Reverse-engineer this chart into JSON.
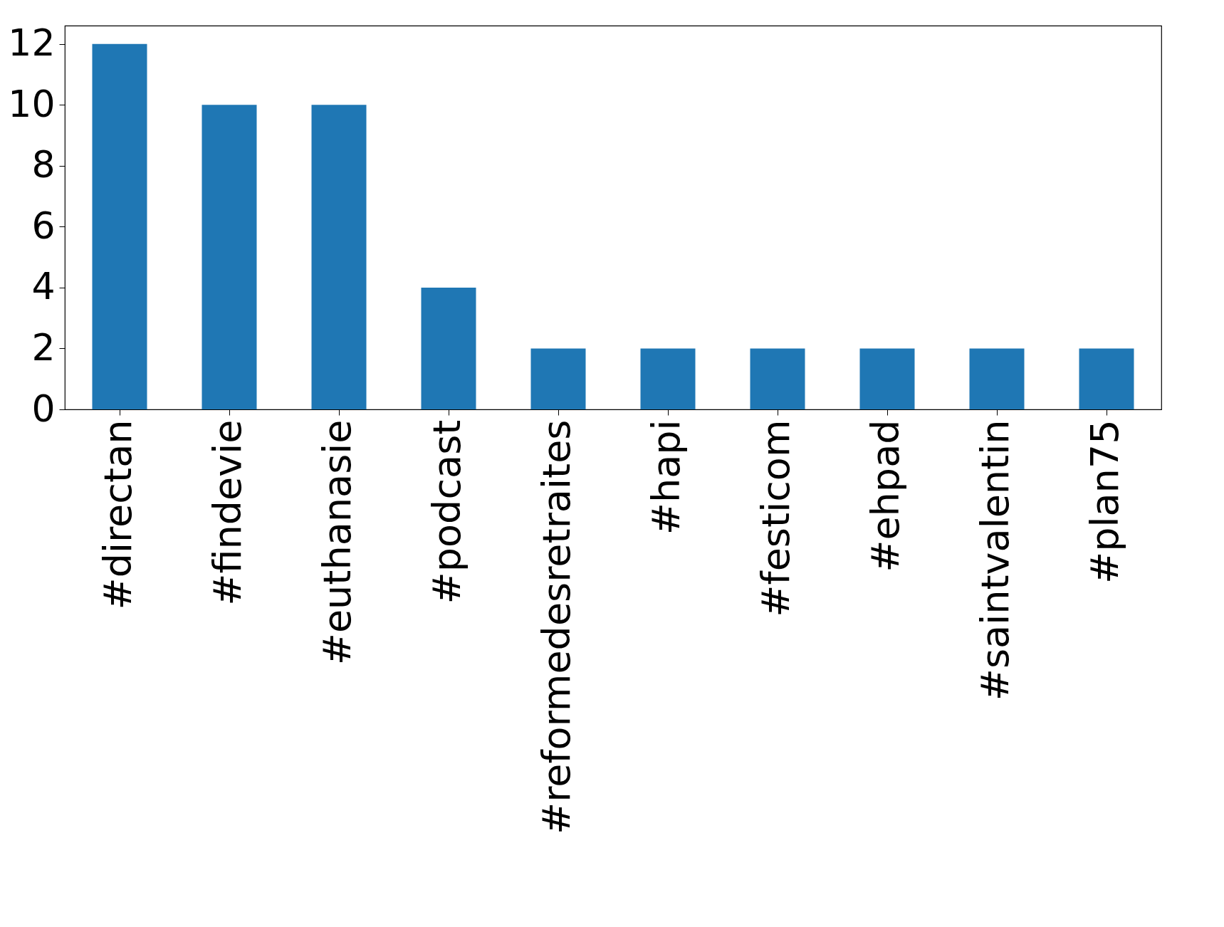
{
  "chart_data": {
    "type": "bar",
    "categories": [
      "#directan",
      "#findevie",
      "#euthanasie",
      "#podcast",
      "#reformedesretraites",
      "#hapi",
      "#festicom",
      "#ehpad",
      "#saintvalentin",
      "#plan75"
    ],
    "values": [
      12,
      10,
      10,
      4,
      2,
      2,
      2,
      2,
      2,
      2
    ],
    "color": "#1f77b4",
    "ylim": [
      0,
      12.6
    ],
    "yticks": [
      0,
      2,
      4,
      6,
      8,
      10,
      12
    ],
    "grid": false
  }
}
